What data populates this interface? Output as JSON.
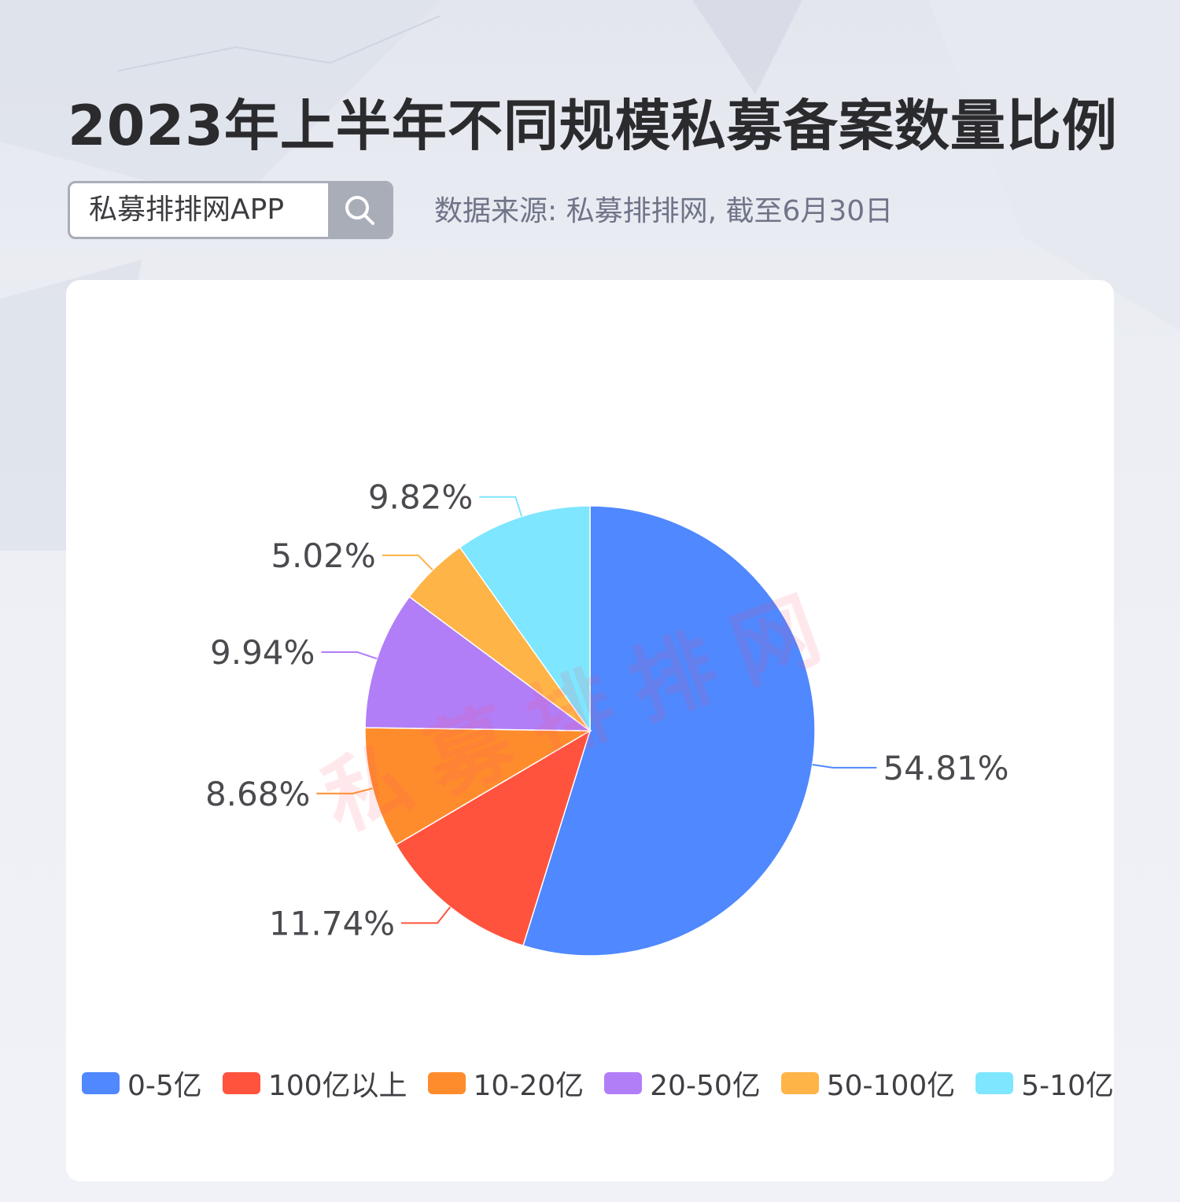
{
  "header": {
    "title": "2023年上半年不同规模私募备案数量比例",
    "search_label": "私募排排网APP",
    "source": "数据来源: 私募排排网, 截至6月30日"
  },
  "watermark": "私募排排网",
  "icons": {
    "search": "search-icon"
  },
  "chart_data": {
    "type": "pie",
    "unit": "%",
    "legend_position": "bottom",
    "slices": [
      {
        "name": "0-5亿",
        "value": 54.81,
        "label": "54.81%",
        "color": "#4f88ff"
      },
      {
        "name": "100亿以上",
        "value": 11.74,
        "label": "11.74%",
        "color": "#ff533d"
      },
      {
        "name": "10-20亿",
        "value": 8.68,
        "label": "8.68%",
        "color": "#ff8c2c"
      },
      {
        "name": "20-50亿",
        "value": 9.94,
        "label": "9.94%",
        "color": "#b17ef7"
      },
      {
        "name": "50-100亿",
        "value": 5.02,
        "label": "5.02%",
        "color": "#ffb447"
      },
      {
        "name": "5-10亿",
        "value": 9.82,
        "label": "9.82%",
        "color": "#7ee6ff"
      }
    ]
  }
}
